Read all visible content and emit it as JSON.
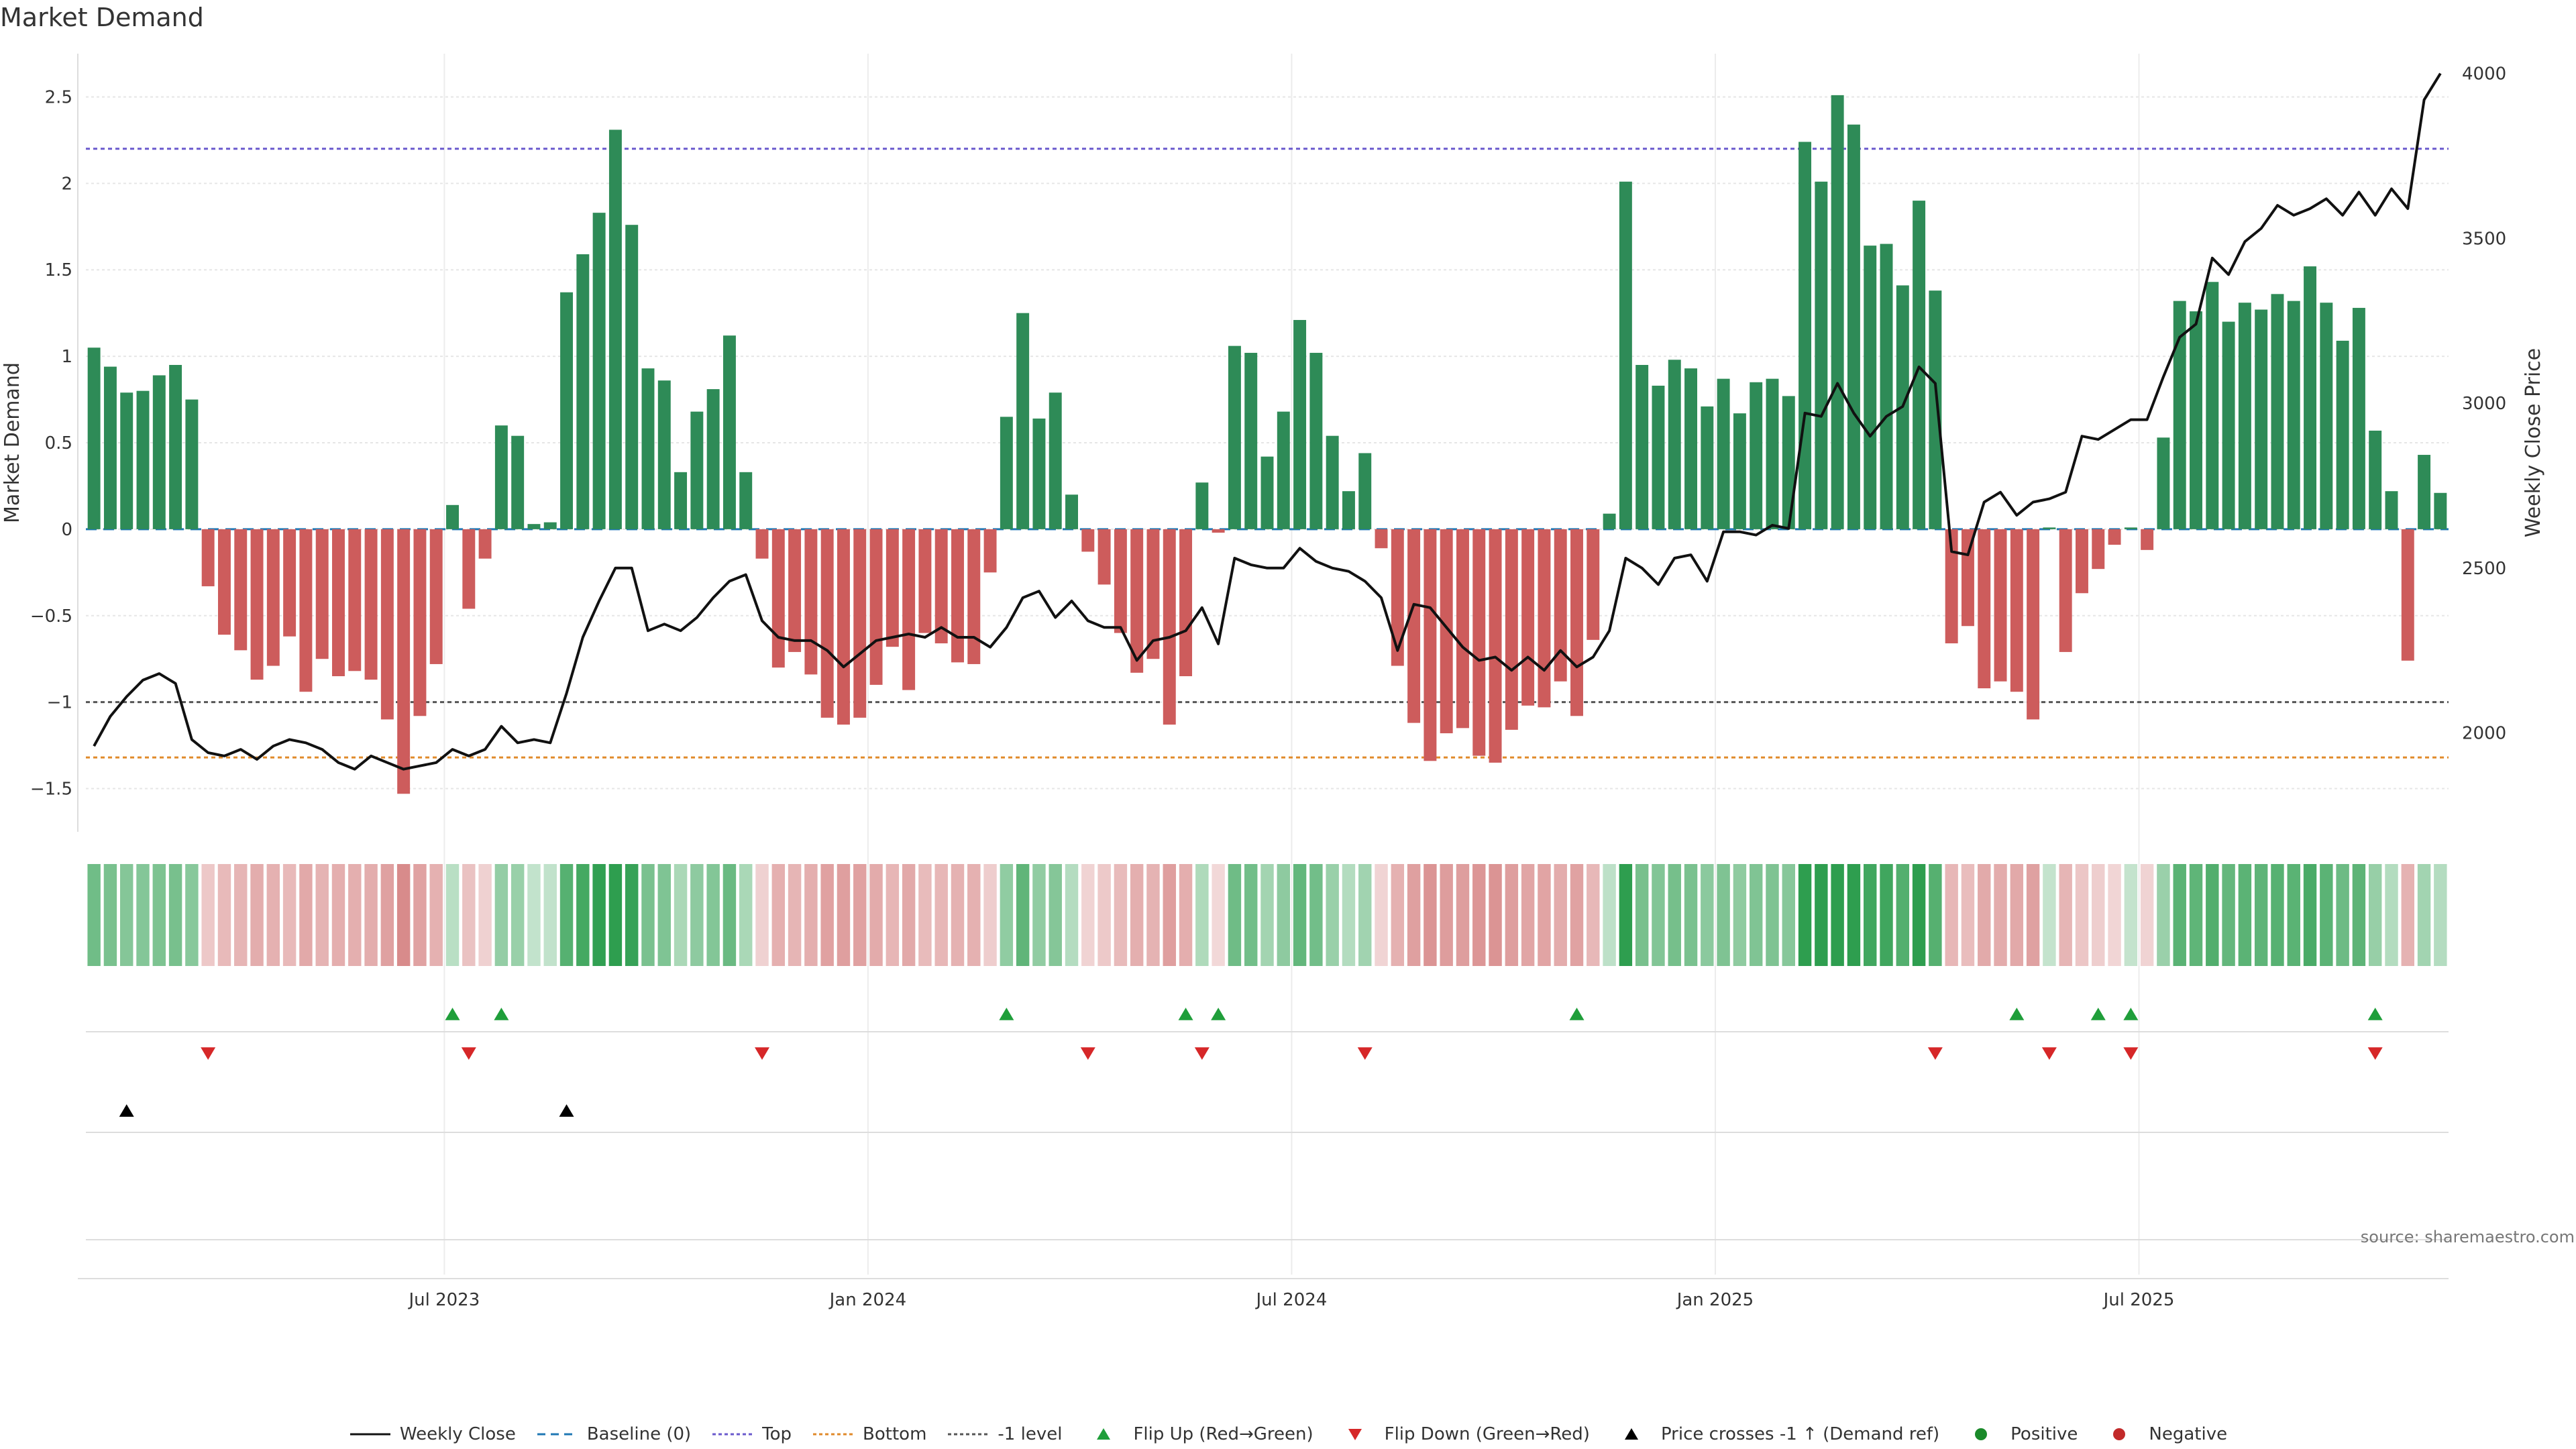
{
  "page": {
    "title": "Market Demand",
    "source": "source: sharemaestro.com"
  },
  "colors": {
    "green": "#2e8b57",
    "red": "#cd5c5c",
    "price": "#111111",
    "baseline": "#1f77b4",
    "top": "#6a5acd",
    "bottom": "#e08a2a",
    "minus1": "#555555",
    "flip_up": "#1f9e3a",
    "flip_down": "#d62728",
    "cross": "#000000",
    "positive": "#1a8a2a",
    "negative": "#c22a2a"
  },
  "chart_data": {
    "type": "bar+line",
    "title": "Market Demand",
    "ylabel_left": "Market Demand",
    "ylabel_right": "Weekly Close Price",
    "ylim_left": [
      -1.75,
      2.75
    ],
    "ylim_right": [
      1700,
      4060
    ],
    "yticks_left": [
      {
        "v": 2.5,
        "label": "2.5"
      },
      {
        "v": 2,
        "label": "2"
      },
      {
        "v": 1.5,
        "label": "1.5"
      },
      {
        "v": 1,
        "label": "1"
      },
      {
        "v": 0.5,
        "label": "0.5"
      },
      {
        "v": 0,
        "label": "0"
      },
      {
        "v": -0.5,
        "label": "−0.5"
      },
      {
        "v": -1,
        "label": "−1"
      },
      {
        "v": -1.5,
        "label": "−1.5"
      }
    ],
    "yticks_right": [
      {
        "v": 4000,
        "label": "4000"
      },
      {
        "v": 3500,
        "label": "3500"
      },
      {
        "v": 3000,
        "label": "3000"
      },
      {
        "v": 2500,
        "label": "2500"
      },
      {
        "v": 2000,
        "label": "2000"
      }
    ],
    "xticks": [
      {
        "week": 22,
        "label": "Jul 2023"
      },
      {
        "week": 48,
        "label": "Jan 2024"
      },
      {
        "week": 74,
        "label": "Jul 2024"
      },
      {
        "week": 100,
        "label": "Jan 2025"
      },
      {
        "week": 126,
        "label": "Jul 2025"
      }
    ],
    "reference_lines": [
      {
        "name": "Top",
        "value": 2.2
      },
      {
        "name": "Bottom",
        "value": -1.32
      },
      {
        "name": "-1 level",
        "value": -1
      },
      {
        "name": "Baseline (0)",
        "value": 0
      }
    ],
    "demand": [
      1.05,
      0.94,
      0.79,
      0.8,
      0.89,
      0.95,
      0.75,
      -0.33,
      -0.61,
      -0.7,
      -0.87,
      -0.79,
      -0.62,
      -0.94,
      -0.75,
      -0.85,
      -0.82,
      -0.87,
      -1.1,
      -1.53,
      -1.08,
      -0.78,
      0.14,
      -0.46,
      -0.17,
      0.6,
      0.54,
      0.03,
      0.04,
      1.37,
      1.59,
      1.83,
      2.31,
      1.76,
      0.93,
      0.86,
      0.33,
      0.68,
      0.81,
      1.12,
      0.33,
      -0.17,
      -0.8,
      -0.71,
      -0.84,
      -1.09,
      -1.13,
      -1.09,
      -0.9,
      -0.68,
      -0.93,
      -0.6,
      -0.66,
      -0.77,
      -0.78,
      -0.25,
      0.65,
      1.25,
      0.64,
      0.79,
      0.2,
      -0.13,
      -0.32,
      -0.6,
      -0.83,
      -0.75,
      -1.13,
      -0.85,
      0.27,
      -0.02,
      1.06,
      1.02,
      0.42,
      0.68,
      1.21,
      1.02,
      0.54,
      0.22,
      0.44,
      -0.11,
      -0.79,
      -1.12,
      -1.34,
      -1.18,
      -1.15,
      -1.31,
      -1.35,
      -1.16,
      -1.02,
      -1.03,
      -0.88,
      -1.08,
      -0.64,
      0.09,
      2.01,
      0.95,
      0.83,
      0.98,
      0.93,
      0.71,
      0.87,
      0.67,
      0.85,
      0.87,
      0.77,
      2.24,
      2.01,
      2.51,
      2.34,
      1.64,
      1.65,
      1.41,
      1.9,
      1.38,
      -0.66,
      -0.56,
      -0.92,
      -0.88,
      -0.94,
      -1.1,
      0.01,
      -0.71,
      -0.37,
      -0.23,
      -0.09,
      0.01,
      -0.12,
      0.53,
      1.32,
      1.26,
      1.43,
      1.2,
      1.31,
      1.27,
      1.36,
      1.32,
      1.52,
      1.31,
      1.09,
      1.28,
      0.57,
      0.22,
      -0.76,
      0.43,
      0.21
    ],
    "strength_series_name": "Market Demand (heat strip)",
    "flip_up_weeks": [
      22,
      25,
      56,
      67,
      69,
      91,
      118,
      123,
      125,
      140
    ],
    "flip_down_weeks": [
      7,
      23,
      41,
      61,
      68,
      78,
      113,
      120,
      125,
      140
    ],
    "price_cross_up_weeks": [
      2,
      29
    ],
    "price": [
      1960,
      2050,
      2110,
      2160,
      2180,
      2150,
      1980,
      1940,
      1930,
      1950,
      1920,
      1960,
      1980,
      1970,
      1950,
      1910,
      1890,
      1930,
      1910,
      1890,
      1900,
      1910,
      1950,
      1930,
      1950,
      2020,
      1970,
      1980,
      1970,
      2120,
      2290,
      2400,
      2500,
      2500,
      2310,
      2330,
      2310,
      2350,
      2410,
      2460,
      2480,
      2340,
      2290,
      2280,
      2280,
      2250,
      2200,
      2240,
      2280,
      2290,
      2300,
      2290,
      2320,
      2290,
      2290,
      2260,
      2320,
      2410,
      2430,
      2350,
      2400,
      2340,
      2320,
      2320,
      2220,
      2280,
      2290,
      2310,
      2380,
      2270,
      2530,
      2510,
      2500,
      2500,
      2560,
      2520,
      2500,
      2490,
      2460,
      2410,
      2250,
      2390,
      2380,
      2320,
      2260,
      2220,
      2230,
      2190,
      2230,
      2190,
      2250,
      2200,
      2230,
      2310,
      2530,
      2500,
      2450,
      2530,
      2540,
      2460,
      2610,
      2610,
      2600,
      2630,
      2620,
      2970,
      2960,
      3060,
      2970,
      2900,
      2960,
      2990,
      3110,
      3060,
      2550,
      2540,
      2700,
      2730,
      2660,
      2700,
      2710,
      2730,
      2900,
      2890,
      2920,
      2950,
      2950,
      3080,
      3200,
      3240,
      3440,
      3390,
      3490,
      3530,
      3600,
      3570,
      3590,
      3620,
      3570,
      3640,
      3570,
      3650,
      3590,
      3920,
      4000
    ],
    "legend": [
      {
        "label": "Weekly Close",
        "symbol": "line-solid",
        "color": "#111111"
      },
      {
        "label": "Baseline (0)",
        "symbol": "line-dash",
        "color": "#1f77b4"
      },
      {
        "label": "Top",
        "symbol": "line-dot",
        "color": "#6a5acd"
      },
      {
        "label": "Bottom",
        "symbol": "line-dot",
        "color": "#e08a2a"
      },
      {
        "label": "-1 level",
        "symbol": "line-dot",
        "color": "#555555"
      },
      {
        "label": "Flip Up (Red→Green)",
        "symbol": "tri-up",
        "color": "#1f9e3a"
      },
      {
        "label": "Flip Down (Green→Red)",
        "symbol": "tri-down",
        "color": "#d62728"
      },
      {
        "label": "Price crosses -1 ↑ (Demand ref)",
        "symbol": "tri-up",
        "color": "#000000"
      },
      {
        "label": "Positive",
        "symbol": "dot",
        "color": "#1a8a2a"
      },
      {
        "label": "Negative",
        "symbol": "dot",
        "color": "#c22a2a"
      }
    ]
  }
}
